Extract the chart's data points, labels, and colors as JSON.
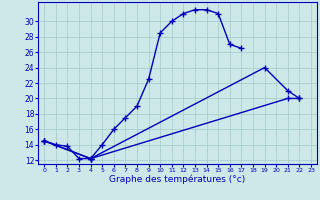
{
  "xlabel": "Graphe des températures (°c)",
  "bg_color": "#cce8e8",
  "grid_color": "#aacece",
  "line_color": "#0000bb",
  "line1_x": [
    0,
    1,
    2,
    3,
    4,
    5,
    6,
    7,
    8,
    9,
    10,
    11,
    12,
    13,
    14,
    15,
    16,
    17
  ],
  "line1_y": [
    14.5,
    14.0,
    13.8,
    12.2,
    12.2,
    14.0,
    16.0,
    17.5,
    19.0,
    22.5,
    28.5,
    30.0,
    31.0,
    31.5,
    31.5,
    31.0,
    27.0,
    26.5
  ],
  "line2_x": [
    0,
    4,
    19,
    21,
    22
  ],
  "line2_y": [
    14.5,
    12.2,
    24.0,
    21.0,
    20.0
  ],
  "line3_x": [
    0,
    4,
    21,
    22
  ],
  "line3_y": [
    14.5,
    12.2,
    20.0,
    20.0
  ],
  "ylim": [
    11.5,
    32.5
  ],
  "xlim": [
    -0.5,
    23.5
  ],
  "yticks": [
    12,
    14,
    16,
    18,
    20,
    22,
    24,
    26,
    28,
    30
  ],
  "xticks": [
    0,
    1,
    2,
    3,
    4,
    5,
    6,
    7,
    8,
    9,
    10,
    11,
    12,
    13,
    14,
    15,
    16,
    17,
    18,
    19,
    20,
    21,
    22,
    23
  ]
}
